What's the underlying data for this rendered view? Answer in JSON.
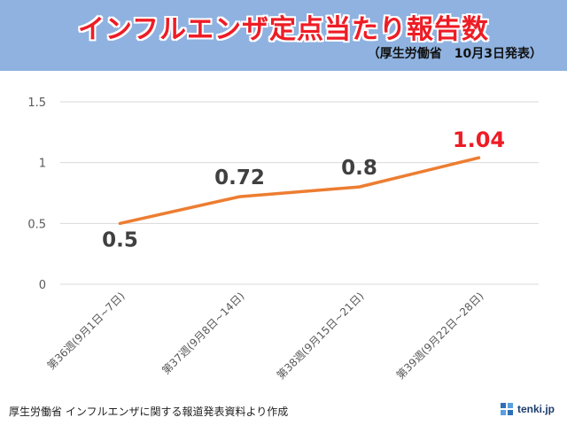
{
  "header": {
    "title": "インフルエンザ定点当たり報告数",
    "subtitle": "（厚生労働省　10月3日発表）"
  },
  "footer": {
    "source_note": "厚生労働省 インフルエンザに関する報道発表資料より作成",
    "brand": "tenki.jp",
    "brand_icon": "tenki-logo-icon"
  },
  "colors": {
    "header_bg": "#8fb2e0",
    "title": "#ee1c25",
    "line": "#ed7d31",
    "highlight_label": "#ee1c25",
    "label": "#404040"
  },
  "chart_data": {
    "type": "line",
    "title": "インフルエンザ定点当たり報告数",
    "xlabel": "",
    "ylabel": "",
    "ylim": [
      0,
      1.5
    ],
    "yticks": [
      0,
      0.5,
      1,
      1.5
    ],
    "ytick_labels": [
      "0",
      "0.5",
      "1",
      "1.5"
    ],
    "grid": true,
    "categories": [
      "第36週(9月1日~7日)",
      "第37週(9月8日~14日)",
      "第38週(9月15日~21日)",
      "第39週(9月22日~28日)"
    ],
    "values": [
      0.5,
      0.72,
      0.8,
      1.04
    ],
    "data_labels": [
      "0.5",
      "0.72",
      "0.8",
      "1.04"
    ],
    "highlight_index": 3
  }
}
